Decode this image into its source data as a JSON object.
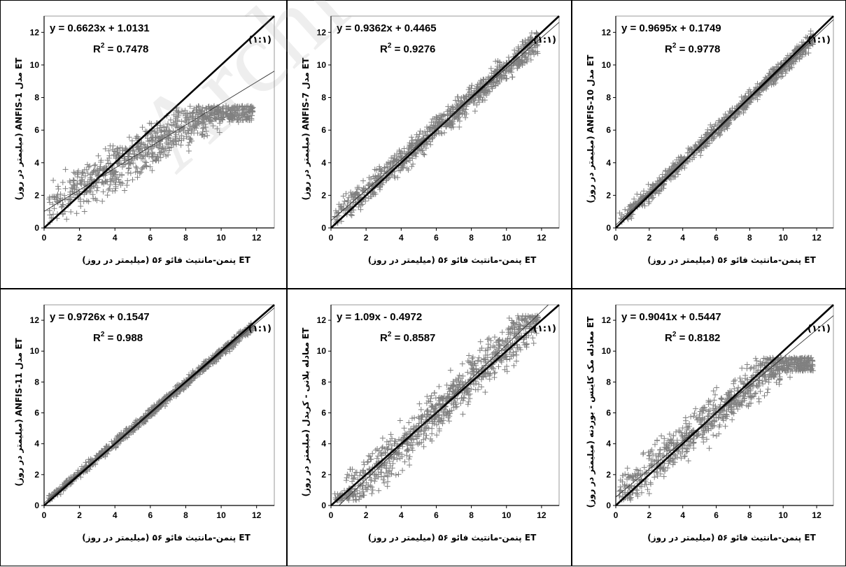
{
  "watermark": "Archive",
  "colors": {
    "points": "#808080",
    "fit_line": "#333333",
    "one_to_one": "#000000"
  },
  "chart_data": [
    {
      "type": "scatter",
      "equation": "y = 0.6623x + 1.0131",
      "r2_prefix": "R",
      "r2_sup": "2",
      "r2_value": " = 0.7478",
      "ref_label": "(۱:۱)",
      "ylabel": "ET مدل ANFIS-1 (میلیمتر در روز)",
      "xlabel": "ET پنمن-مانتیث فائو ۵۶ (میلیمتر در روز)",
      "slope": 0.6623,
      "intercept": 1.0131,
      "xlim": [
        0,
        13
      ],
      "ylim": [
        0,
        13
      ],
      "xticks": [
        0,
        2,
        4,
        6,
        8,
        10,
        12
      ],
      "yticks": [
        0,
        2,
        4,
        6,
        8,
        10,
        12
      ],
      "scatter_marker": "+",
      "cap": 7.5,
      "noise": 1.1
    },
    {
      "type": "scatter",
      "equation": "y = 0.9362x + 0.4465",
      "r2_prefix": "R",
      "r2_sup": "2",
      "r2_value": " = 0.9276",
      "ref_label": "(۱:۱)",
      "ylabel": "ET مدل ANFIS-7 (میلیمتر در روز)",
      "xlabel": "ET پنمن-مانتیث فائو ۵۶ (میلیمتر در روز)",
      "slope": 0.9362,
      "intercept": 0.4465,
      "xlim": [
        0,
        13
      ],
      "ylim": [
        0,
        13
      ],
      "xticks": [
        0,
        2,
        4,
        6,
        8,
        10,
        12
      ],
      "yticks": [
        0,
        2,
        4,
        6,
        8,
        10,
        12
      ],
      "scatter_marker": "+",
      "cap": 12.3,
      "noise": 0.65
    },
    {
      "type": "scatter",
      "equation": "y = 0.9695x + 0.1749",
      "r2_prefix": "R",
      "r2_sup": "2",
      "r2_value": " = 0.9778",
      "ref_label": "(۱:۱)",
      "ylabel": "ET مدل ANFIS-10 (میلیمتر در روز)",
      "xlabel": "ET پنمن-مانتیث فائو ۵۶ (میلیمتر در روز)",
      "slope": 0.9695,
      "intercept": 0.1749,
      "xlim": [
        0,
        13
      ],
      "ylim": [
        0,
        13
      ],
      "xticks": [
        0,
        2,
        4,
        6,
        8,
        10,
        12
      ],
      "yticks": [
        0,
        2,
        4,
        6,
        8,
        10,
        12
      ],
      "scatter_marker": "+",
      "cap": 12.2,
      "noise": 0.4
    },
    {
      "type": "scatter",
      "equation": "y = 0.9726x + 0.1547",
      "r2_prefix": "R",
      "r2_sup": "2",
      "r2_value": " = 0.988",
      "ref_label": "(۱:۱)",
      "ylabel": "ET مدل ANFIS-11 (میلیمتر در روز)",
      "xlabel": "ET پنمن-مانتیث فائو ۵۶ (میلیمتر در روز)",
      "slope": 0.9726,
      "intercept": 0.1547,
      "xlim": [
        0,
        13
      ],
      "ylim": [
        0,
        13
      ],
      "xticks": [
        0,
        2,
        4,
        6,
        8,
        10,
        12
      ],
      "yticks": [
        0,
        2,
        4,
        6,
        8,
        10,
        12
      ],
      "scatter_marker": "+",
      "cap": 12.2,
      "noise": 0.25
    },
    {
      "type": "scatter",
      "equation": "y = 1.09x - 0.4972",
      "r2_prefix": "R",
      "r2_sup": "2",
      "r2_value": " = 0.8587",
      "ref_label": "(۱:۱)",
      "ylabel": "ET معادله بلانی - کریدل (میلیمتر در روز)",
      "xlabel": "ET پنمن-مانتیث فائو ۵۶ (میلیمتر در روز)",
      "slope": 1.09,
      "intercept": -0.4972,
      "xlim": [
        0,
        13
      ],
      "ylim": [
        0,
        13
      ],
      "xticks": [
        0,
        2,
        4,
        6,
        8,
        10,
        12
      ],
      "yticks": [
        0,
        2,
        4,
        6,
        8,
        10,
        12
      ],
      "scatter_marker": "+",
      "cap": 12.3,
      "noise": 1.2
    },
    {
      "type": "scatter",
      "equation": "y = 0.9041x + 0.5447",
      "r2_prefix": "R",
      "r2_sup": "2",
      "r2_value": " = 0.8182",
      "ref_label": "(۱:۱)",
      "ylabel": "ET معادله مک کاینس - بوردنه (میلیمتر در روز)",
      "xlabel": "ET پنمن-مانتیث فائو ۵۶ (میلیمتر در روز)",
      "slope": 0.9041,
      "intercept": 0.5447,
      "xlim": [
        0,
        13
      ],
      "ylim": [
        0,
        13
      ],
      "xticks": [
        0,
        2,
        4,
        6,
        8,
        10,
        12
      ],
      "yticks": [
        0,
        2,
        4,
        6,
        8,
        10,
        12
      ],
      "scatter_marker": "+",
      "cap": 9.6,
      "noise": 1.1
    }
  ]
}
